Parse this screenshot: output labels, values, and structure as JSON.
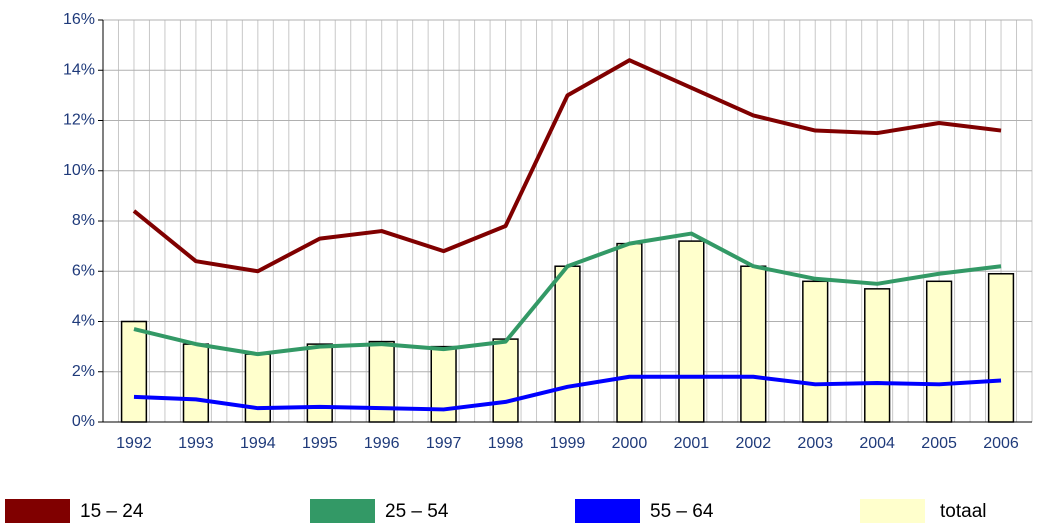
{
  "chart_data": {
    "type": "bar",
    "categories": [
      "1992",
      "1993",
      "1994",
      "1995",
      "1996",
      "1997",
      "1998",
      "1999",
      "2000",
      "2001",
      "2002",
      "2003",
      "2004",
      "2005",
      "2006"
    ],
    "series": [
      {
        "name": "15 – 24",
        "color": "#800000",
        "type": "line",
        "values": [
          8.4,
          6.4,
          6.0,
          7.3,
          7.6,
          6.8,
          7.8,
          13.0,
          14.4,
          13.3,
          12.2,
          11.6,
          11.5,
          11.9,
          11.6
        ]
      },
      {
        "name": "25 – 54",
        "color": "#339966",
        "type": "line",
        "values": [
          3.7,
          3.1,
          2.7,
          3.0,
          3.1,
          2.9,
          3.2,
          6.2,
          7.1,
          7.5,
          6.2,
          5.7,
          5.5,
          5.9,
          6.2
        ]
      },
      {
        "name": "55 – 64",
        "color": "#0000ff",
        "type": "line",
        "values": [
          1.0,
          0.9,
          0.55,
          0.6,
          0.55,
          0.5,
          0.8,
          1.4,
          1.8,
          1.8,
          1.8,
          1.5,
          1.55,
          1.5,
          1.65
        ]
      },
      {
        "name": "totaal",
        "color": "#ffffcc",
        "type": "bar",
        "values": [
          4.0,
          3.1,
          2.7,
          3.1,
          3.2,
          3.0,
          3.3,
          6.2,
          7.1,
          7.2,
          6.2,
          5.6,
          5.3,
          5.6,
          5.9
        ]
      }
    ],
    "ylim": [
      0,
      16
    ],
    "yticks": [
      {
        "value": 0,
        "label": "0%"
      },
      {
        "value": 2,
        "label": "2%"
      },
      {
        "value": 4,
        "label": "4%"
      },
      {
        "value": 6,
        "label": "6%"
      },
      {
        "value": 8,
        "label": "8%"
      },
      {
        "value": 10,
        "label": "10%"
      },
      {
        "value": 12,
        "label": "12%"
      },
      {
        "value": 14,
        "label": "14%"
      },
      {
        "value": 16,
        "label": "16%"
      }
    ],
    "grid": true
  }
}
